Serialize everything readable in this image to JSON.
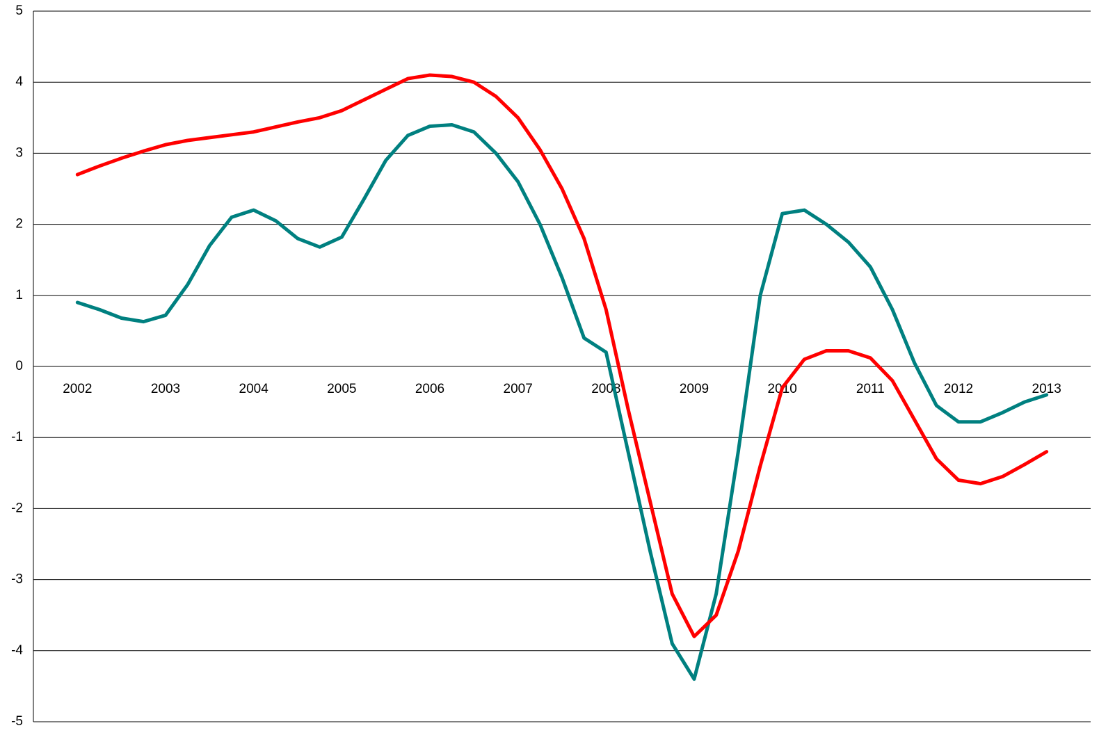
{
  "chart_data": {
    "type": "line",
    "x": [
      2002,
      2002.25,
      2002.5,
      2002.75,
      2003,
      2003.25,
      2003.5,
      2003.75,
      2004,
      2004.25,
      2004.5,
      2004.75,
      2005,
      2005.25,
      2005.5,
      2005.75,
      2006,
      2006.25,
      2006.5,
      2006.75,
      2007,
      2007.25,
      2007.5,
      2007.75,
      2008,
      2008.25,
      2008.5,
      2008.75,
      2009,
      2009.25,
      2009.5,
      2009.75,
      2010,
      2010.25,
      2010.5,
      2010.75,
      2011,
      2011.25,
      2011.5,
      2011.75,
      2012,
      2012.25,
      2012.5,
      2012.75,
      2013
    ],
    "series": [
      {
        "color": "#008080",
        "values": [
          0.9,
          0.8,
          0.68,
          0.63,
          0.72,
          1.15,
          1.7,
          2.1,
          2.2,
          2.05,
          1.8,
          1.68,
          1.82,
          2.35,
          2.9,
          3.25,
          3.38,
          3.4,
          3.3,
          3.0,
          2.6,
          2.0,
          1.25,
          0.4,
          0.2,
          -1.2,
          -2.6,
          -3.9,
          -4.4,
          -3.2,
          -1.2,
          1.0,
          2.15,
          2.2,
          2.0,
          1.75,
          1.4,
          0.8,
          0.05,
          -0.55,
          -0.78,
          -0.78,
          -0.65,
          -0.5,
          -0.4
        ]
      },
      {
        "color": "#ff0000",
        "values": [
          2.7,
          2.82,
          2.93,
          3.03,
          3.12,
          3.18,
          3.22,
          3.26,
          3.3,
          3.37,
          3.44,
          3.5,
          3.6,
          3.75,
          3.9,
          4.05,
          4.1,
          4.08,
          4.0,
          3.8,
          3.5,
          3.05,
          2.5,
          1.8,
          0.8,
          -0.6,
          -1.9,
          -3.2,
          -3.8,
          -3.5,
          -2.6,
          -1.4,
          -0.3,
          0.1,
          0.22,
          0.22,
          0.12,
          -0.2,
          -0.75,
          -1.3,
          -1.6,
          -1.65,
          -1.55,
          -1.38,
          -1.2
        ]
      }
    ],
    "xlim": [
      2001.5,
      2013.5
    ],
    "xticks": [
      2002,
      2003,
      2004,
      2005,
      2006,
      2007,
      2008,
      2009,
      2010,
      2011,
      2012,
      2013
    ],
    "ylim": [
      -5,
      5
    ],
    "yticks": [
      -5,
      -4,
      -3,
      -2,
      -1,
      0,
      1,
      2,
      3,
      4,
      5
    ],
    "grid": true
  }
}
